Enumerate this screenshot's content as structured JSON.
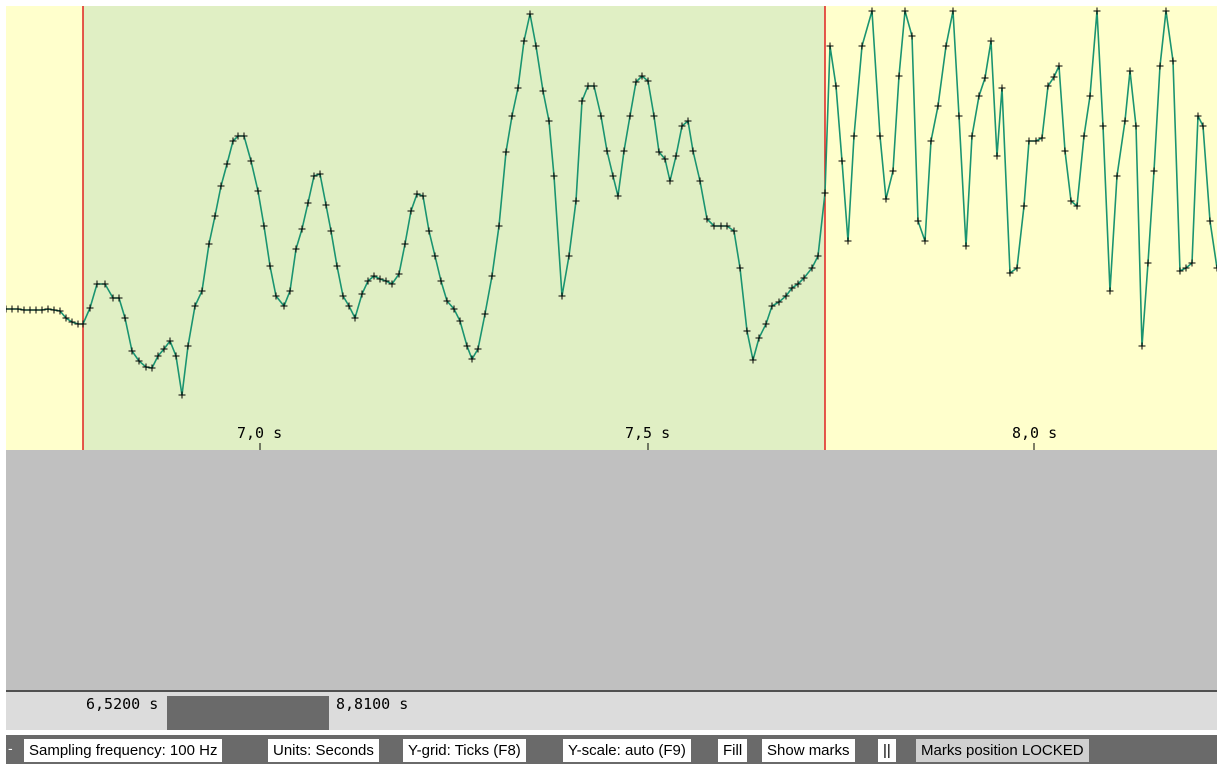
{
  "plot": {
    "background_color": "#ffffcc",
    "selection_color": "#e0efc4",
    "marker_line_color": "#e02020",
    "trace_color": "#1a9470",
    "axis_ticks": [
      "7,0 s",
      "7,5 s",
      "8,0 s"
    ]
  },
  "range_bar": {
    "start": "6,5200 s",
    "end": "8,8100 s"
  },
  "status_bar": {
    "dash": "-",
    "items": [
      "Sampling frequency: 100 Hz",
      "Units: Seconds",
      "Y-grid:  Ticks (F8)",
      "Y-scale: auto (F9)",
      "Fill",
      "Show marks",
      "||",
      "Marks position LOCKED"
    ]
  }
}
